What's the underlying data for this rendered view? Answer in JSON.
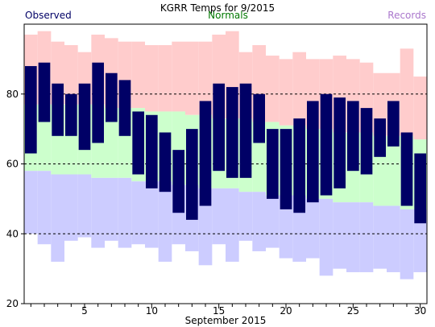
{
  "chart_data": {
    "type": "bar",
    "title": "KGRR Temps for 9/2015",
    "xlabel": "September 2015",
    "ylabel": "",
    "legend": {
      "observed": "Observed",
      "normals": "Normals",
      "records": "Records"
    },
    "colors": {
      "observed": "#000066",
      "normals": "#007700",
      "records": "#aa77cc",
      "normals_fill": "#ccffcc",
      "records_high_fill": "#ffcccc",
      "records_low_fill": "#ccccff",
      "observed_bar": "#000066"
    },
    "ylim": [
      20,
      100
    ],
    "yticks": [
      20,
      40,
      60,
      80
    ],
    "xlim": [
      0.5,
      30.5
    ],
    "xticks": [
      5,
      10,
      15,
      20,
      25,
      30
    ],
    "gridlines": [
      40,
      60,
      80
    ],
    "days": [
      1,
      2,
      3,
      4,
      5,
      6,
      7,
      8,
      9,
      10,
      11,
      12,
      13,
      14,
      15,
      16,
      17,
      18,
      19,
      20,
      21,
      22,
      23,
      24,
      25,
      26,
      27,
      28,
      29,
      30
    ],
    "series": [
      {
        "name": "Observed",
        "role": "observed_high",
        "values": [
          88,
          89,
          83,
          80,
          83,
          89,
          86,
          84,
          75,
          74,
          69,
          64,
          70,
          78,
          83,
          82,
          83,
          80,
          70,
          70,
          73,
          78,
          80,
          79,
          78,
          76,
          73,
          78,
          69,
          63
        ]
      },
      {
        "name": "Observed",
        "role": "observed_low",
        "values": [
          63,
          72,
          68,
          68,
          64,
          66,
          72,
          68,
          57,
          53,
          52,
          46,
          44,
          48,
          58,
          56,
          56,
          66,
          50,
          47,
          46,
          49,
          51,
          53,
          58,
          57,
          62,
          65,
          48,
          43
        ]
      },
      {
        "name": "Normals",
        "role": "normal_high",
        "values": [
          77,
          77,
          77,
          77,
          77,
          77,
          76,
          76,
          76,
          75,
          75,
          75,
          74,
          74,
          73,
          73,
          73,
          72,
          72,
          71,
          71,
          70,
          70,
          69,
          69,
          69,
          68,
          68,
          68,
          67
        ]
      },
      {
        "name": "Normals",
        "role": "normal_low",
        "values": [
          58,
          58,
          57,
          57,
          57,
          56,
          56,
          56,
          55,
          55,
          55,
          54,
          54,
          53,
          53,
          53,
          52,
          52,
          51,
          51,
          51,
          50,
          50,
          49,
          49,
          49,
          48,
          48,
          47,
          47
        ]
      },
      {
        "name": "Records",
        "role": "record_high",
        "values": [
          97,
          98,
          95,
          94,
          92,
          97,
          96,
          95,
          95,
          94,
          94,
          95,
          95,
          95,
          97,
          98,
          92,
          94,
          91,
          90,
          92,
          90,
          90,
          91,
          90,
          89,
          86,
          86,
          93,
          85
        ]
      },
      {
        "name": "Records",
        "role": "record_low",
        "values": [
          40,
          37,
          32,
          38,
          39,
          36,
          38,
          36,
          37,
          36,
          32,
          37,
          35,
          31,
          37,
          32,
          38,
          35,
          36,
          33,
          32,
          33,
          28,
          30,
          29,
          29,
          30,
          29,
          27,
          29
        ]
      }
    ]
  }
}
